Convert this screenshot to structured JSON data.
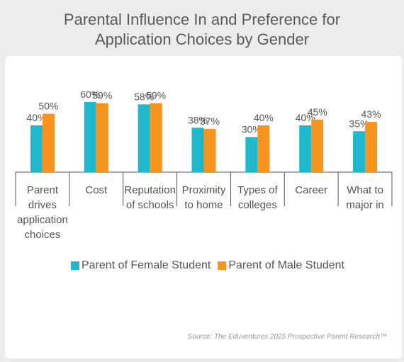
{
  "title_line1": "Parental Influence In and Preference for",
  "title_line2": "Application Choices by Gender",
  "source": "Source: The Eduventures 2025 Prospective Parent Research™",
  "colors": {
    "female": "#1fb8cc",
    "male": "#f7941d"
  },
  "chart_data": {
    "type": "bar",
    "title": "Parental Influence In and Preference for Application Choices by Gender",
    "categories": [
      [
        "Parent",
        "drives",
        "application",
        "choices"
      ],
      [
        "Cost"
      ],
      [
        "Reputation",
        "of schools"
      ],
      [
        "Proximity",
        "to home"
      ],
      [
        "Types of",
        "colleges"
      ],
      [
        "Career"
      ],
      [
        "What to",
        "major in"
      ]
    ],
    "series": [
      {
        "name": "Parent of Female Student",
        "values": [
          40,
          60,
          58,
          38,
          30,
          40,
          35
        ]
      },
      {
        "name": "Parent of Male Student",
        "values": [
          50,
          59,
          59,
          37,
          40,
          45,
          43
        ]
      }
    ],
    "value_suffix": "%",
    "ylim": [
      0,
      100
    ],
    "grid": false,
    "legend_position": "bottom"
  }
}
